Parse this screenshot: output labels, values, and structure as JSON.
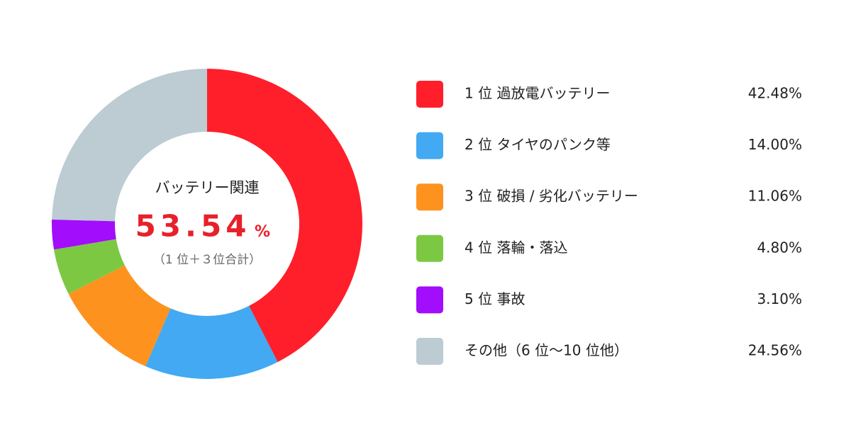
{
  "chart_data": {
    "type": "donut",
    "categories": [
      "1 位 過放電バッテリー",
      "2 位 タイヤのパンク等",
      "3 位 破損 / 劣化バッテリー",
      "4 位 落輪・落込",
      "5 位 事故",
      "その他（6 位〜10 位他）"
    ],
    "values": [
      42.48,
      14.0,
      11.06,
      4.8,
      3.1,
      24.56
    ],
    "value_labels": [
      "42.48%",
      "14.00%",
      "11.06%",
      "4.80%",
      "3.10%",
      "24.56%"
    ],
    "colors": [
      "#fe1f2b",
      "#42a9f2",
      "#fd921f",
      "#7dc843",
      "#a20dfb",
      "#bdcbd3"
    ],
    "center_title": "バッテリー関連",
    "center_value": "53.54",
    "center_unit": "%",
    "center_note": "（1 位＋３位合計）"
  }
}
